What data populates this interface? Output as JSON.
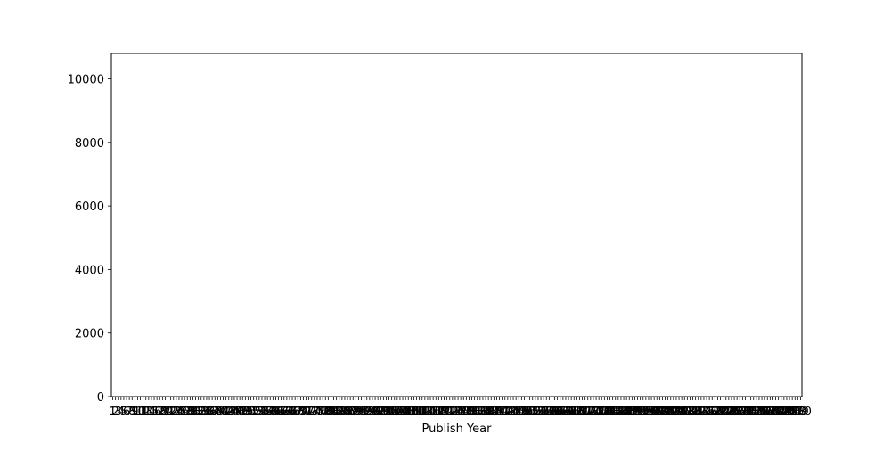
{
  "chart_data": {
    "type": "bar",
    "title": "",
    "xlabel": "Publish Year",
    "ylabel": "",
    "ylim": [
      0,
      10800
    ],
    "yticks": [
      0,
      2000,
      4000,
      6000,
      8000,
      10000
    ],
    "grid": false,
    "legend": "none",
    "bar_color": "#a47632",
    "categories": [
      "1",
      "2",
      "3",
      "4",
      "5",
      "6",
      "7",
      "8",
      "9",
      "10",
      "11",
      "12",
      "13",
      "14",
      "15",
      "16",
      "17",
      "18",
      "19",
      "20",
      "21",
      "22",
      "23",
      "24",
      "25",
      "26",
      "27",
      "28",
      "29",
      "30",
      "31",
      "32",
      "33",
      "34",
      "35",
      "36",
      "37",
      "38",
      "39",
      "40",
      "41",
      "42",
      "43",
      "44",
      "45",
      "46",
      "47",
      "48",
      "49",
      "50",
      "51",
      "52",
      "53",
      "54",
      "55",
      "56",
      "57",
      "58",
      "59",
      "60",
      "61",
      "62",
      "63",
      "64",
      "65",
      "66",
      "67",
      "68",
      "69",
      "70",
      "71",
      "72",
      "73",
      "74",
      "75",
      "76",
      "77",
      "78",
      "79",
      "80",
      "81",
      "82",
      "83",
      "84",
      "85",
      "86",
      "87",
      "88",
      "89",
      "90",
      "91",
      "92",
      "93",
      "94",
      "95",
      "96",
      "97",
      "98",
      "99",
      "100",
      "101",
      "102",
      "103",
      "104",
      "105",
      "106",
      "107",
      "108",
      "109",
      "110",
      "111",
      "112",
      "113",
      "114",
      "115",
      "116",
      "117",
      "118",
      "119",
      "120",
      "121",
      "122",
      "123",
      "124",
      "125",
      "126",
      "127",
      "128",
      "129",
      "130",
      "131",
      "132",
      "133",
      "134",
      "135",
      "136",
      "137",
      "138",
      "139",
      "140",
      "141",
      "142",
      "143",
      "144",
      "145",
      "146",
      "147",
      "148",
      "149",
      "150",
      "151",
      "152",
      "153",
      "154",
      "155",
      "156",
      "157",
      "158",
      "159",
      "160",
      "161",
      "162",
      "163",
      "164",
      "165",
      "166",
      "167",
      "168",
      "169",
      "170",
      "171",
      "172",
      "173",
      "174",
      "175",
      "176",
      "177",
      "178",
      "179",
      "180",
      "181",
      "182",
      "183",
      "184",
      "185",
      "186",
      "187",
      "188",
      "189",
      "190",
      "191",
      "192",
      "193",
      "194",
      "195",
      "196",
      "197",
      "198",
      "199",
      "200",
      "201",
      "202",
      "203",
      "204",
      "205",
      "206",
      "207",
      "208",
      "209",
      "210",
      "211",
      "212",
      "213",
      "214",
      "215",
      "216",
      "217",
      "218",
      "219",
      "220",
      "221",
      "222",
      "223",
      "224",
      "225",
      "226",
      "227",
      "228",
      "229",
      "230",
      "231",
      "232",
      "233",
      "234",
      "235",
      "236",
      "237",
      "238",
      "239",
      "240",
      "241",
      "242",
      "243",
      "244",
      "245",
      "246",
      "247",
      "248",
      "249",
      "250"
    ],
    "values": [
      1,
      1,
      1,
      1,
      1,
      1,
      1,
      1,
      1,
      1,
      15,
      1,
      1,
      1,
      1,
      1,
      1,
      1,
      1,
      1,
      1,
      1,
      1,
      1,
      1,
      1,
      1,
      1,
      1,
      1,
      1,
      1,
      1,
      1,
      1,
      1,
      1,
      1,
      1,
      1,
      1,
      1,
      1,
      1,
      1,
      1,
      1,
      1,
      1,
      1,
      1,
      1,
      1,
      1,
      1,
      1,
      1,
      1,
      1,
      1,
      1,
      1,
      1,
      1,
      1,
      1,
      1,
      1,
      1,
      1,
      1,
      1,
      1,
      1,
      1,
      1,
      1,
      1,
      1,
      1,
      1,
      1,
      1,
      1,
      1,
      1,
      1,
      1,
      1,
      1,
      1,
      1,
      1,
      1,
      1,
      1,
      1,
      1,
      1,
      1,
      1,
      1,
      1,
      1,
      1,
      1,
      1,
      1,
      1,
      1,
      1,
      1,
      1,
      1,
      1,
      1,
      1,
      1,
      1,
      1,
      1,
      1,
      1,
      1,
      1,
      1,
      1,
      1,
      1,
      1,
      1,
      1,
      1,
      1,
      1,
      1,
      1,
      1,
      1,
      1,
      1,
      1,
      1,
      1,
      1,
      1,
      1,
      1,
      1,
      1,
      1,
      1,
      1,
      1,
      1,
      1,
      1,
      1,
      1,
      1,
      1,
      1,
      1,
      1,
      1,
      1,
      1,
      1,
      1,
      1,
      1,
      1,
      1,
      1,
      1,
      1,
      1,
      1,
      1,
      1,
      1,
      1,
      1,
      1,
      1,
      1,
      1,
      1,
      1,
      1,
      1,
      1,
      1,
      1,
      1,
      1,
      1,
      1,
      1,
      1,
      1,
      1,
      1,
      1,
      1,
      1,
      1,
      1,
      1,
      1,
      1,
      1,
      1,
      1,
      1,
      1,
      1,
      1,
      1,
      1,
      1,
      1,
      1,
      1,
      1,
      1,
      1,
      1,
      1,
      1,
      1,
      1,
      1,
      1,
      1,
      1,
      1,
      1,
      1,
      1,
      1,
      1,
      1,
      1,
      1,
      1,
      1,
      1,
      1,
      1
    ]
  }
}
